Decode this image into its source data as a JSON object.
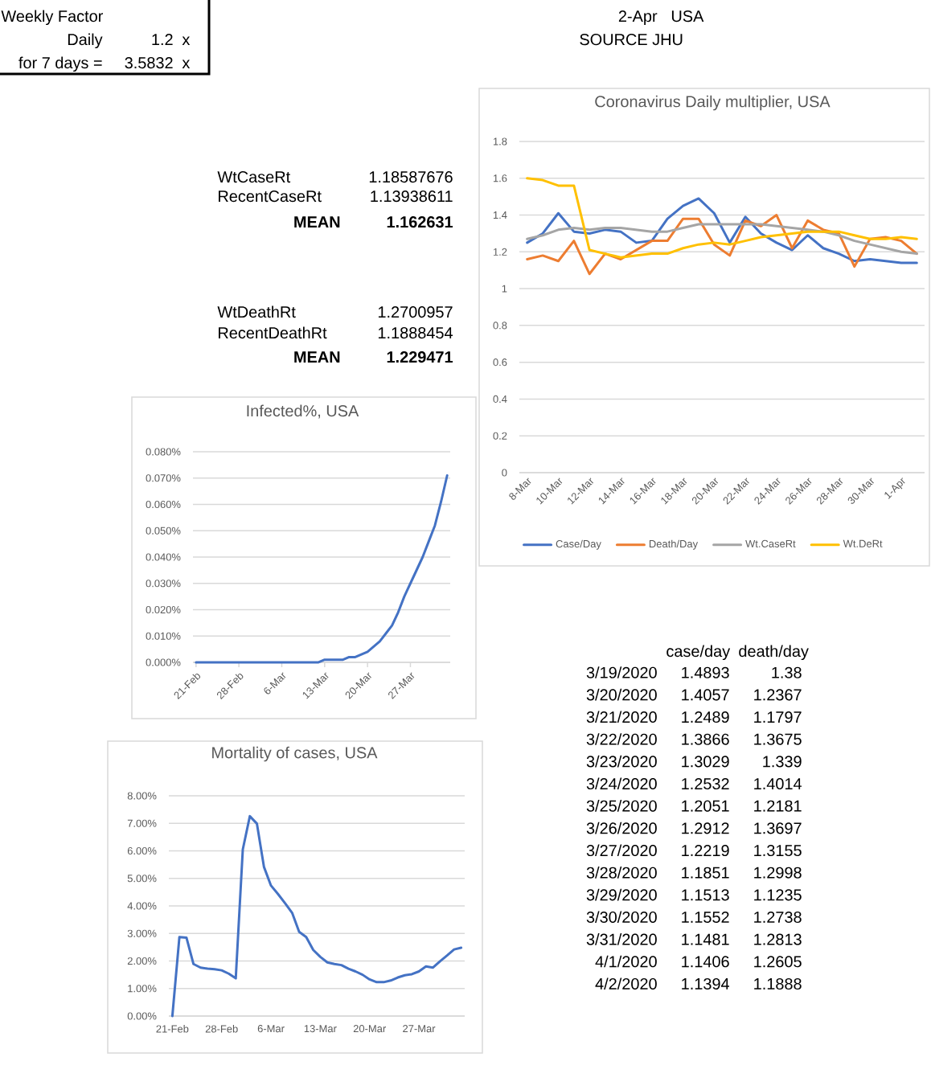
{
  "chart_data": [
    {
      "type": "other",
      "title": "Weekly Factor",
      "categories": [
        "Daily",
        "for 7 days ="
      ],
      "values": [
        1.2,
        3.5832
      ],
      "data_labels": true,
      "annotations": [
        "x",
        "x"
      ]
    },
    {
      "type": "other",
      "annotations": [
        "2-Apr",
        "USA",
        "SOURCE JHU"
      ]
    },
    {
      "type": "line",
      "title": "Coronavirus Daily multiplier, USA",
      "categories": [
        "8-Mar",
        null,
        "10-Mar",
        null,
        "12-Mar",
        null,
        "14-Mar",
        null,
        "16-Mar",
        null,
        "18-Mar",
        null,
        "20-Mar",
        null,
        "22-Mar",
        null,
        "24-Mar",
        null,
        "26-Mar",
        null,
        "28-Mar",
        null,
        "30-Mar",
        null,
        "1-Apr",
        null
      ],
      "series": [
        {
          "name": "Case/Day",
          "color": "#4472c4",
          "values": [
            1.25,
            1.3,
            1.41,
            1.31,
            1.3,
            1.32,
            1.31,
            1.25,
            1.26,
            1.38,
            1.45,
            1.49,
            1.41,
            1.25,
            1.39,
            1.3,
            1.25,
            1.21,
            1.29,
            1.22,
            1.19,
            1.15,
            1.16,
            1.15,
            1.14,
            1.14
          ]
        },
        {
          "name": "Death/Day",
          "color": "#ed7d31",
          "values": [
            1.16,
            1.18,
            1.15,
            1.26,
            1.08,
            1.19,
            1.16,
            1.21,
            1.26,
            1.26,
            1.38,
            1.38,
            1.24,
            1.18,
            1.37,
            1.34,
            1.4,
            1.22,
            1.37,
            1.32,
            1.3,
            1.12,
            1.27,
            1.28,
            1.26,
            1.19
          ]
        },
        {
          "name": "Wt.CaseRt",
          "color": "#a5a5a5",
          "values": [
            1.27,
            1.29,
            1.32,
            1.33,
            1.32,
            1.33,
            1.33,
            1.32,
            1.31,
            1.31,
            1.33,
            1.35,
            1.35,
            1.35,
            1.35,
            1.35,
            1.34,
            1.33,
            1.32,
            1.31,
            1.29,
            1.26,
            1.24,
            1.22,
            1.2,
            1.19
          ]
        },
        {
          "name": "Wt.DeRt",
          "color": "#ffc000",
          "values": [
            1.6,
            1.59,
            1.56,
            1.56,
            1.21,
            1.19,
            1.17,
            1.18,
            1.19,
            1.19,
            1.22,
            1.24,
            1.25,
            1.24,
            1.26,
            1.28,
            1.29,
            1.3,
            1.31,
            1.31,
            1.31,
            1.29,
            1.27,
            1.27,
            1.28,
            1.27
          ]
        }
      ],
      "ylim": [
        0,
        1.8
      ],
      "yticks": [
        0,
        0.2,
        0.4,
        0.6,
        0.8,
        1,
        1.2,
        1.4,
        1.6,
        1.8
      ],
      "grid": "y",
      "legend": "bottom"
    },
    {
      "type": "other",
      "categories": [
        "WtCaseRt",
        "RecentCaseRt",
        "MEAN",
        "WtDeathRt",
        "RecentDeathRt",
        "MEAN"
      ],
      "values": [
        1.18587676,
        1.13938611,
        1.162631,
        1.2700957,
        1.1888454,
        1.229471
      ],
      "data_labels": true
    },
    {
      "type": "line",
      "title": "Infected%, USA",
      "categories": [
        "21-Feb",
        null,
        null,
        null,
        null,
        null,
        null,
        "28-Feb",
        null,
        null,
        null,
        null,
        null,
        null,
        "6-Mar",
        null,
        null,
        null,
        null,
        null,
        null,
        "13-Mar",
        null,
        null,
        null,
        null,
        null,
        null,
        "20-Mar",
        null,
        null,
        null,
        null,
        null,
        null,
        "27-Mar",
        null,
        null,
        null,
        null,
        null,
        null
      ],
      "values": [
        0,
        0,
        0,
        0,
        0,
        0,
        0,
        0,
        0,
        0,
        0,
        0,
        0,
        0,
        0,
        0,
        0,
        0,
        0,
        0,
        0,
        0.001,
        0.001,
        0.001,
        0.001,
        0.002,
        0.002,
        0.003,
        0.004,
        0.006,
        0.008,
        0.011,
        0.014,
        0.019,
        0.025,
        0.03,
        0.035,
        0.04,
        0.046,
        0.052,
        0.061,
        0.071
      ],
      "color": "#4472c4",
      "ylim": [
        0,
        0.08
      ],
      "yticks": [
        {
          "value": 0,
          "label": "0.000%"
        },
        {
          "value": 0.01,
          "label": "0.010%"
        },
        {
          "value": 0.02,
          "label": "0.020%"
        },
        {
          "value": 0.03,
          "label": "0.030%"
        },
        {
          "value": 0.04,
          "label": "0.040%"
        },
        {
          "value": 0.05,
          "label": "0.050%"
        },
        {
          "value": 0.06,
          "label": "0.060%"
        },
        {
          "value": 0.07,
          "label": "0.070%"
        },
        {
          "value": 0.08,
          "label": "0.080%"
        }
      ],
      "grid": "y"
    },
    {
      "type": "other",
      "categories": [
        "3/19/2020",
        "3/20/2020",
        "3/21/2020",
        "3/22/2020",
        "3/23/2020",
        "3/24/2020",
        "3/25/2020",
        "3/26/2020",
        "3/27/2020",
        "3/28/2020",
        "3/29/2020",
        "3/30/2020",
        "3/31/2020",
        "4/1/2020",
        "4/2/2020"
      ],
      "series": [
        {
          "name": "case/day",
          "values": [
            1.4893,
            1.4057,
            1.2489,
            1.3866,
            1.3029,
            1.2532,
            1.2051,
            1.2912,
            1.2219,
            1.1851,
            1.1513,
            1.1552,
            1.1481,
            1.1406,
            1.1394
          ]
        },
        {
          "name": "death/day",
          "values": [
            1.38,
            1.2367,
            1.1797,
            1.3675,
            1.339,
            1.4014,
            1.2181,
            1.3697,
            1.3155,
            1.2998,
            1.1235,
            1.2738,
            1.2813,
            1.2605,
            1.1888
          ]
        }
      ],
      "data_labels": true
    },
    {
      "type": "line",
      "title": "Mortality of cases, USA",
      "categories": [
        "21-Feb",
        null,
        null,
        null,
        null,
        null,
        null,
        "28-Feb",
        null,
        null,
        null,
        null,
        null,
        null,
        "6-Mar",
        null,
        null,
        null,
        null,
        null,
        null,
        "13-Mar",
        null,
        null,
        null,
        null,
        null,
        null,
        "20-Mar",
        null,
        null,
        null,
        null,
        null,
        null,
        "27-Mar",
        null,
        null,
        null,
        null,
        null,
        null
      ],
      "values": [
        0.0,
        2.87,
        2.85,
        1.89,
        1.76,
        1.72,
        1.7,
        1.66,
        1.54,
        1.37,
        6.05,
        7.26,
        6.99,
        5.42,
        4.74,
        4.43,
        4.1,
        3.75,
        3.06,
        2.87,
        2.4,
        2.15,
        1.95,
        1.89,
        1.85,
        1.72,
        1.62,
        1.5,
        1.33,
        1.23,
        1.23,
        1.29,
        1.4,
        1.48,
        1.52,
        1.62,
        1.8,
        1.76,
        1.99,
        2.2,
        2.42,
        2.48
      ],
      "color": "#4472c4",
      "ylim": [
        0,
        8
      ],
      "yticks": [
        {
          "value": 0,
          "label": "0.00%"
        },
        {
          "value": 1,
          "label": "1.00%"
        },
        {
          "value": 2,
          "label": "2.00%"
        },
        {
          "value": 3,
          "label": "3.00%"
        },
        {
          "value": 4,
          "label": "4.00%"
        },
        {
          "value": 5,
          "label": "5.00%"
        },
        {
          "value": 6,
          "label": "6.00%"
        },
        {
          "value": 7,
          "label": "7.00%"
        },
        {
          "value": 8,
          "label": "8.00%"
        }
      ],
      "grid": "y"
    }
  ]
}
